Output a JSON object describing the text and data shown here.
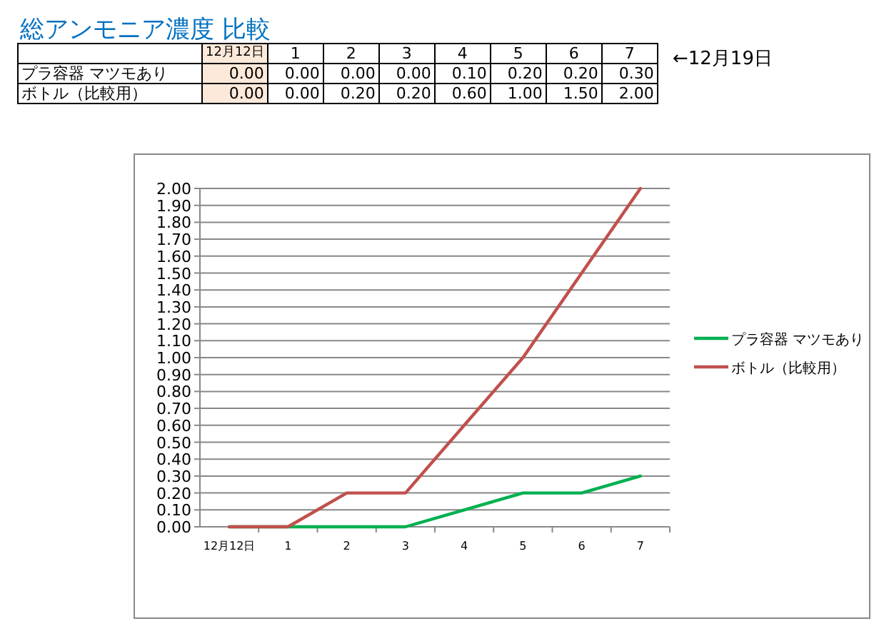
{
  "chart_data": {
    "type": "line",
    "title": "総アンモニア濃度 比較",
    "categories": [
      "12月12日",
      "1",
      "2",
      "3",
      "4",
      "5",
      "6",
      "7"
    ],
    "series": [
      {
        "name": "プラ容器 マツモあり",
        "color": "#00b050",
        "values": [
          0,
          0,
          0,
          0,
          0.1,
          0.2,
          0.2,
          0.3
        ],
        "value_labels": [
          "0.00",
          "0.00",
          "0.00",
          "0.00",
          "0.10",
          "0.20",
          "0.20",
          "0.30"
        ]
      },
      {
        "name": "ボトル（比較用）",
        "color": "#c0504d",
        "values": [
          0,
          0,
          0.2,
          0.2,
          0.6,
          1.0,
          1.5,
          2.0
        ],
        "value_labels": [
          "0.00",
          "0.00",
          "0.20",
          "0.20",
          "0.60",
          "1.00",
          "1.50",
          "2.00"
        ]
      }
    ],
    "annotations": [
      "←12月19日"
    ],
    "ylim": [
      0,
      2
    ],
    "yticks": [
      {
        "value": 0,
        "label": "0.00"
      },
      {
        "value": 0.1,
        "label": "0.10"
      },
      {
        "value": 0.2,
        "label": "0.20"
      },
      {
        "value": 0.3,
        "label": "0.30"
      },
      {
        "value": 0.4,
        "label": "0.40"
      },
      {
        "value": 0.5,
        "label": "0.50"
      },
      {
        "value": 0.6,
        "label": "0.60"
      },
      {
        "value": 0.7,
        "label": "0.70"
      },
      {
        "value": 0.8,
        "label": "0.80"
      },
      {
        "value": 0.9,
        "label": "0.90"
      },
      {
        "value": 1.0,
        "label": "1.00"
      },
      {
        "value": 1.1,
        "label": "1.10"
      },
      {
        "value": 1.2,
        "label": "1.20"
      },
      {
        "value": 1.3,
        "label": "1.30"
      },
      {
        "value": 1.4,
        "label": "1.40"
      },
      {
        "value": 1.5,
        "label": "1.50"
      },
      {
        "value": 1.6,
        "label": "1.60"
      },
      {
        "value": 1.7,
        "label": "1.70"
      },
      {
        "value": 1.8,
        "label": "1.80"
      },
      {
        "value": 1.9,
        "label": "1.90"
      },
      {
        "value": 2.0,
        "label": "2.00"
      }
    ],
    "grid": "y",
    "legend": "right",
    "marker": "none",
    "line_style": "solid"
  }
}
